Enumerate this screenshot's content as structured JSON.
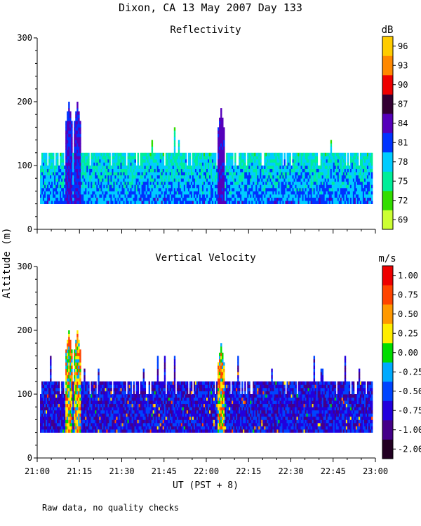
{
  "title": "Dixon, CA 13 May 2007  Day 133",
  "footer_note": "Raw data, no quality checks",
  "colors": {
    "background": "#ffffff",
    "axis": "#000000",
    "reflectivity_scale": [
      "#ccff33",
      "#33dd00",
      "#00ee99",
      "#00ccff",
      "#0033ff",
      "#5500bb",
      "#330033",
      "#ee0000",
      "#ff8800",
      "#ffcc00"
    ],
    "velocity_scale": [
      "#220022",
      "#440088",
      "#2200dd",
      "#0044ff",
      "#00aaff",
      "#00dd00",
      "#ffee00",
      "#ff9900",
      "#ff4400",
      "#ee0000"
    ]
  },
  "chart_data": [
    {
      "type": "heatmap",
      "title": "Reflectivity",
      "ylabel": "Altitude (m)",
      "xlabel": "UT  (PST + 8)",
      "x_ticks": [
        "21:00",
        "21:15",
        "21:30",
        "21:45",
        "22:00",
        "22:15",
        "22:30",
        "22:45",
        "23:00"
      ],
      "x_range_minutes": [
        0,
        120
      ],
      "y_ticks": [
        0,
        100,
        200,
        300
      ],
      "ylim": [
        0,
        300
      ],
      "data_altitude_range": [
        40,
        120
      ],
      "colorbar": {
        "unit": "dB",
        "min": 67.5,
        "max": 97.5,
        "labels": [
          69,
          72,
          75,
          78,
          81,
          84,
          87,
          90,
          93,
          96
        ]
      },
      "typical_value": 80,
      "plumes": [
        {
          "t": 11,
          "top": 200,
          "peak": 84
        },
        {
          "t": 14,
          "top": 200,
          "peak": 84
        },
        {
          "t": 65,
          "top": 190,
          "peak": 85
        }
      ]
    },
    {
      "type": "heatmap",
      "title": "Vertical Velocity",
      "ylabel": "Altitude (m)",
      "xlabel": "UT  (PST + 8)",
      "x_ticks": [
        "21:00",
        "21:15",
        "21:30",
        "21:45",
        "22:00",
        "22:15",
        "22:30",
        "22:45",
        "23:00"
      ],
      "x_range_minutes": [
        0,
        120
      ],
      "y_ticks": [
        0,
        100,
        200,
        300
      ],
      "ylim": [
        0,
        300
      ],
      "data_altitude_range": [
        40,
        120
      ],
      "colorbar": {
        "unit": "m/s",
        "labels": [
          "-2.00",
          "-1.00",
          "-0.75",
          "-0.50",
          "-0.25",
          "0.00",
          "0.25",
          "0.50",
          "0.75",
          "1.00"
        ]
      },
      "typical_value": -0.6,
      "plumes": [
        {
          "t": 11,
          "top": 200,
          "peak": 1.0
        },
        {
          "t": 14,
          "top": 200,
          "peak": 1.0
        },
        {
          "t": 65,
          "top": 180,
          "peak": 1.0
        }
      ]
    }
  ]
}
